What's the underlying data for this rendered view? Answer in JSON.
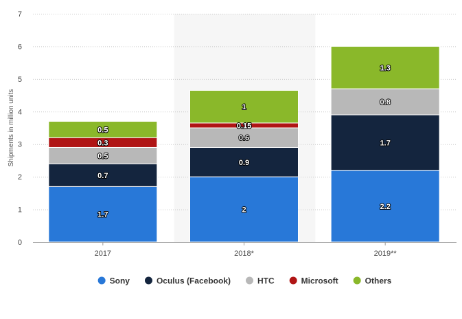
{
  "chart_data": {
    "type": "bar",
    "stacked": true,
    "title": "",
    "xlabel": "",
    "ylabel": "Shipments in million units",
    "categories": [
      "2017",
      "2018*",
      "2019**"
    ],
    "highlighted_category": "2018*",
    "ylim": [
      0,
      7
    ],
    "yticks": [
      0,
      1,
      2,
      3,
      4,
      5,
      6,
      7
    ],
    "grid": "horizontal dotted",
    "legend_position": "bottom",
    "series": [
      {
        "name": "Sony",
        "color": "#2878d8",
        "values": [
          1.7,
          2,
          2.2
        ],
        "labels": [
          "1.7",
          "2",
          "2.2"
        ]
      },
      {
        "name": "Oculus (Facebook)",
        "color": "#14253e",
        "values": [
          0.7,
          0.9,
          1.7
        ],
        "labels": [
          "0.7",
          "0.9",
          "1.7"
        ]
      },
      {
        "name": "HTC",
        "color": "#b8b8b8",
        "values": [
          0.5,
          0.6,
          0.8
        ],
        "labels": [
          "0.5",
          "0.6",
          "0.8"
        ]
      },
      {
        "name": "Microsoft",
        "color": "#b01515",
        "values": [
          0.3,
          0.15,
          0
        ],
        "labels": [
          "0.3",
          "0.15",
          ""
        ]
      },
      {
        "name": "Others",
        "color": "#8ab82a",
        "values": [
          0.5,
          1,
          1.3
        ],
        "labels": [
          "0.5",
          "1",
          "1.3"
        ]
      }
    ]
  }
}
